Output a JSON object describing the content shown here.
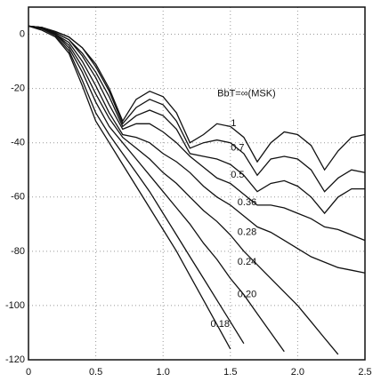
{
  "chart_data": {
    "type": "line",
    "x": [
      0,
      0.1,
      0.2,
      0.3,
      0.4,
      0.5,
      0.6,
      0.7,
      0.8,
      0.9,
      1.0,
      1.1,
      1.2,
      1.3,
      1.4,
      1.5,
      1.6,
      1.7,
      1.8,
      1.9,
      2.0,
      2.1,
      2.2,
      2.3,
      2.4,
      2.5
    ],
    "xlim": [
      0,
      2.5
    ],
    "ylim": [
      -120,
      10
    ],
    "xticks": [
      0,
      0.5,
      {
        "value": 1,
        "label": "1.0"
      },
      1.5,
      {
        "value": 2,
        "label": "2.0"
      },
      2.5
    ],
    "yticks": [
      0,
      -20,
      -40,
      -60,
      -80,
      -100,
      -120
    ],
    "grid": true,
    "series": [
      {
        "name": "BbT=∞(MSK)",
        "color": "#111",
        "values": [
          3,
          2.5,
          1,
          -1,
          -5,
          -11,
          -20,
          -32,
          -24,
          -21,
          -23,
          -29,
          -40,
          -37,
          -33,
          -34,
          -38,
          -47,
          -40,
          -36,
          -37,
          -41,
          -50,
          -43,
          -38,
          -37
        ]
      },
      {
        "name": "1",
        "color": "#111",
        "values": [
          3,
          2.5,
          1,
          -1,
          -5,
          -12,
          -21,
          -33,
          -27,
          -24,
          -26,
          -32,
          -42,
          -40,
          -39,
          -40,
          -44,
          -52,
          -46,
          -45,
          -46,
          -50,
          -58,
          -53,
          -50,
          -51
        ]
      },
      {
        "name": "0.7",
        "color": "#111",
        "values": [
          3,
          2.5,
          0.5,
          -2,
          -7,
          -14,
          -23,
          -34,
          -30,
          -28,
          -30,
          -35,
          -44,
          -45,
          -46,
          -48,
          -52,
          -58,
          -55,
          -54,
          -56,
          -60,
          -66,
          -60,
          -57,
          -57
        ]
      },
      {
        "name": "0.5",
        "color": "#111",
        "values": [
          3,
          2.5,
          0.5,
          -2,
          -8,
          -16,
          -26,
          -35,
          -33,
          -33,
          -36,
          -40,
          -45,
          -49,
          -53,
          -55,
          -59,
          -63,
          -63,
          -64,
          -66,
          -68,
          -71,
          -72,
          -74,
          -76
        ]
      },
      {
        "name": "0.36",
        "color": "#111",
        "values": [
          3,
          2.5,
          0,
          -3,
          -10,
          -19,
          -29,
          -37,
          -38,
          -40,
          -44,
          -47,
          -51,
          -56,
          -60,
          -63,
          -67,
          -71,
          -73,
          -76,
          -79,
          -82,
          -84,
          -86,
          -87,
          -88
        ]
      },
      {
        "name": "0.28",
        "color": "#111",
        "values": [
          3,
          2,
          0,
          -4,
          -12,
          -22,
          -31,
          -38,
          -42,
          -46,
          -51,
          -55,
          -60,
          -65,
          -69,
          -74,
          -80,
          -85,
          -90,
          -95,
          -100,
          -106,
          -112,
          -118,
          null,
          null
        ]
      },
      {
        "name": "0.24",
        "color": "#111",
        "values": [
          3,
          2,
          0,
          -5,
          -14,
          -25,
          -34,
          -40,
          -46,
          -52,
          -58,
          -64,
          -70,
          -77,
          -83,
          -90,
          -96,
          -103,
          -110,
          -117,
          null,
          null,
          null,
          null,
          null,
          null
        ]
      },
      {
        "name": "0.20",
        "color": "#111",
        "values": [
          3,
          2,
          -0.5,
          -6,
          -17,
          -29,
          -37,
          -44,
          -51,
          -58,
          -66,
          -74,
          -82,
          -90,
          -98,
          -106,
          -114,
          null,
          null,
          null,
          null,
          null,
          null,
          null,
          null,
          null
        ]
      },
      {
        "name": "0.18",
        "color": "#111",
        "values": [
          3,
          1.5,
          -1,
          -7,
          -19,
          -32,
          -40,
          -48,
          -56,
          -64,
          -72,
          -80,
          -89,
          -98,
          -107,
          -116,
          null,
          null,
          null,
          null,
          null,
          null,
          null,
          null,
          null,
          null
        ]
      }
    ]
  }
}
